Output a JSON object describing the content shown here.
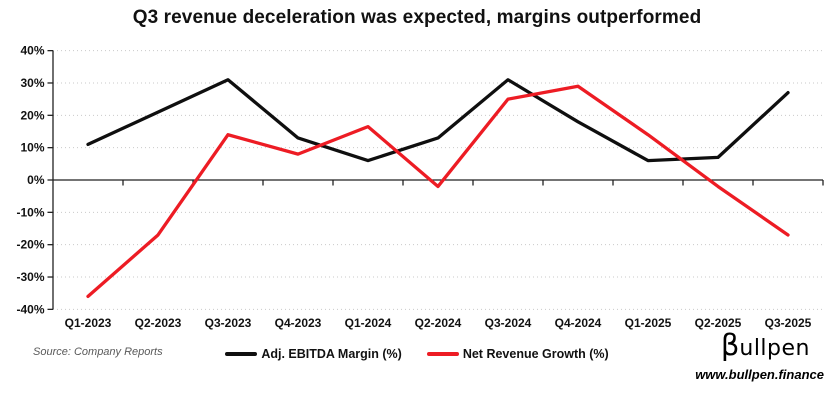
{
  "title": "Q3 revenue deceleration was expected, margins outperformed",
  "chart_data": {
    "type": "line",
    "categories": [
      "Q1-2023",
      "Q2-2023",
      "Q3-2023",
      "Q4-2023",
      "Q1-2024",
      "Q2-2024",
      "Q3-2024",
      "Q4-2024",
      "Q1-2025",
      "Q2-2025",
      "Q3-2025"
    ],
    "series": [
      {
        "name": "Adj. EBITDA Margin (%)",
        "color": "#0f0f0f",
        "values": [
          11,
          21,
          31,
          13,
          6,
          13,
          31,
          18,
          6,
          7,
          27
        ]
      },
      {
        "name": "Net Revenue Growth (%)",
        "color": "#ed1c24",
        "values": [
          -36,
          -17,
          14,
          8,
          16.5,
          -2,
          25,
          29,
          14,
          -2,
          -17
        ]
      }
    ],
    "xlabel": "",
    "ylabel": "",
    "ylim": [
      -40,
      40
    ],
    "ytick_values": [
      40,
      30,
      20,
      10,
      0,
      -10,
      -20,
      -30,
      -40
    ],
    "ytick_labels": [
      "40%",
      "30%",
      "20%",
      "10%",
      "0%",
      "-10%",
      "-20%",
      "-30%",
      "-40%"
    ],
    "grid": "horizontal-dotted",
    "legend_position": "bottom-center",
    "zero_axis": true
  },
  "footer": {
    "source": "Source: Company Reports",
    "logo_beta": "β",
    "logo_rest": "ullpen",
    "website": "www.bullpen.finance"
  }
}
